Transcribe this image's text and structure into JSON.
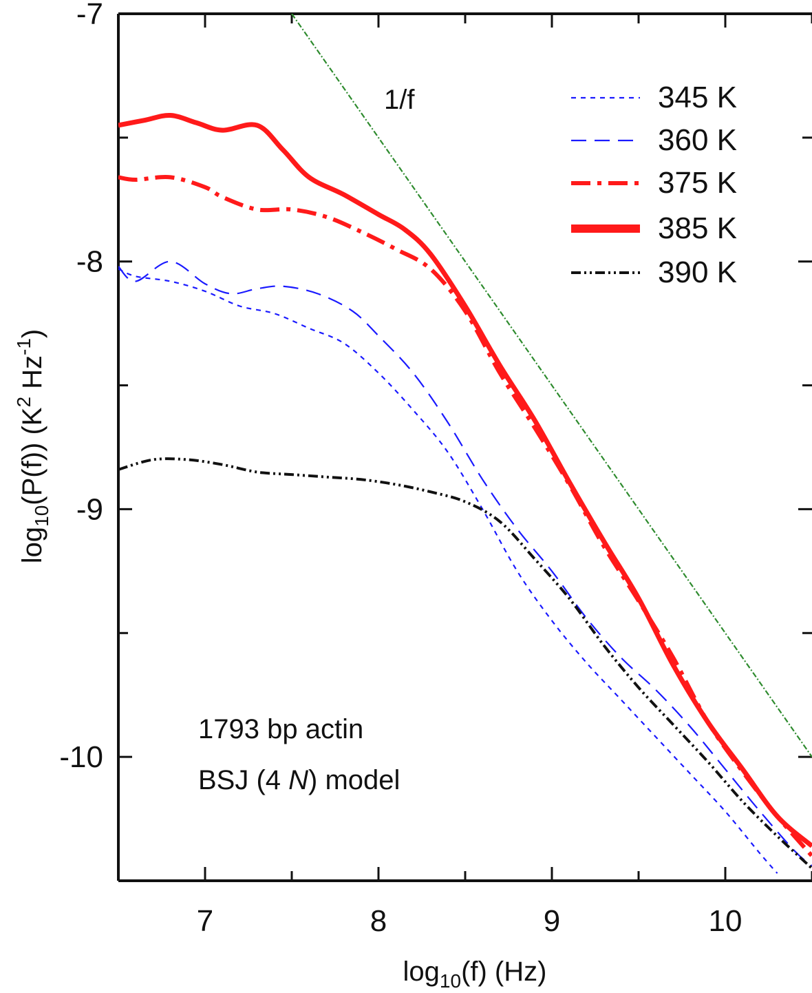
{
  "chart_data": {
    "type": "line",
    "xlabel": "log10(f)  (Hz)",
    "ylabel": "log10(P(f))  (K2 Hz-1)",
    "xlim": [
      6.5,
      10.5
    ],
    "ylim": [
      -10.5,
      -7
    ],
    "xticks": [
      7,
      8,
      9,
      10
    ],
    "yticks": [
      -7,
      -8,
      -9,
      -10
    ],
    "annotations": {
      "slope_label": "1/f",
      "model_line1": "1793 bp actin",
      "model_line2_pre": "BSJ (4 ",
      "model_line2_ital": "N",
      "model_line2_post": ") model"
    },
    "reference_line": {
      "name": "1/f",
      "color": "#2e8b2e",
      "x": [
        7.5,
        10.5
      ],
      "y": [
        -7.0,
        -10.0
      ]
    },
    "legend_position": "top-right",
    "series": [
      {
        "name": "345 K",
        "color": "#1a1aff",
        "dash": "short",
        "x": [
          6.5,
          6.6,
          6.8,
          7.0,
          7.2,
          7.4,
          7.6,
          7.8,
          8.0,
          8.2,
          8.4,
          8.6,
          8.8,
          9.0,
          9.2,
          9.4,
          9.6,
          9.8,
          10.0,
          10.2,
          10.3
        ],
        "y": [
          -8.03,
          -8.06,
          -8.08,
          -8.12,
          -8.18,
          -8.21,
          -8.27,
          -8.33,
          -8.45,
          -8.6,
          -8.77,
          -9.0,
          -9.25,
          -9.45,
          -9.62,
          -9.77,
          -9.92,
          -10.07,
          -10.22,
          -10.39,
          -10.47
        ]
      },
      {
        "name": "360 K",
        "color": "#1a1aff",
        "dash": "long",
        "x": [
          6.5,
          6.6,
          6.8,
          7.0,
          7.15,
          7.3,
          7.45,
          7.65,
          7.85,
          8.0,
          8.2,
          8.4,
          8.6,
          8.8,
          9.0,
          9.2,
          9.4,
          9.6,
          9.8,
          10.0,
          10.2,
          10.4,
          10.5
        ],
        "y": [
          -8.02,
          -8.08,
          -8.0,
          -8.09,
          -8.13,
          -8.11,
          -8.1,
          -8.13,
          -8.2,
          -8.3,
          -8.45,
          -8.65,
          -8.88,
          -9.08,
          -9.25,
          -9.44,
          -9.6,
          -9.73,
          -9.88,
          -10.05,
          -10.22,
          -10.38,
          -10.44
        ]
      },
      {
        "name": "375 K",
        "color": "#ff1a1a",
        "dash": "dashdot",
        "x": [
          6.5,
          6.6,
          6.8,
          7.0,
          7.1,
          7.3,
          7.5,
          7.7,
          7.9,
          8.1,
          8.3,
          8.5,
          8.7,
          8.9,
          9.1,
          9.3,
          9.5,
          9.7,
          9.9,
          10.1,
          10.3,
          10.5
        ],
        "y": [
          -7.66,
          -7.67,
          -7.66,
          -7.7,
          -7.74,
          -7.79,
          -7.79,
          -7.82,
          -7.88,
          -7.95,
          -8.03,
          -8.2,
          -8.45,
          -8.67,
          -8.9,
          -9.15,
          -9.37,
          -9.6,
          -9.86,
          -10.06,
          -10.24,
          -10.4
        ]
      },
      {
        "name": "385 K",
        "color": "#ff1a1a",
        "dash": "solid",
        "x": [
          6.5,
          6.65,
          6.8,
          6.95,
          7.1,
          7.3,
          7.45,
          7.6,
          7.8,
          8.0,
          8.15,
          8.3,
          8.5,
          8.7,
          8.9,
          9.1,
          9.3,
          9.5,
          9.7,
          9.9,
          10.1,
          10.3,
          10.5
        ],
        "y": [
          -7.45,
          -7.43,
          -7.41,
          -7.44,
          -7.47,
          -7.45,
          -7.55,
          -7.66,
          -7.73,
          -7.81,
          -7.87,
          -7.97,
          -8.18,
          -8.42,
          -8.64,
          -8.89,
          -9.13,
          -9.36,
          -9.63,
          -9.86,
          -10.05,
          -10.24,
          -10.36
        ]
      },
      {
        "name": "390 K",
        "color": "#111111",
        "dash": "dashdotdot",
        "x": [
          6.5,
          6.7,
          6.9,
          7.1,
          7.3,
          7.5,
          7.7,
          7.9,
          8.1,
          8.3,
          8.5,
          8.7,
          8.9,
          9.1,
          9.3,
          9.5,
          9.7,
          9.9,
          10.1,
          10.3,
          10.5
        ],
        "y": [
          -8.84,
          -8.8,
          -8.8,
          -8.82,
          -8.85,
          -8.86,
          -8.87,
          -8.88,
          -8.9,
          -8.93,
          -8.97,
          -9.05,
          -9.2,
          -9.36,
          -9.55,
          -9.72,
          -9.87,
          -10.02,
          -10.18,
          -10.32,
          -10.45
        ]
      }
    ]
  }
}
